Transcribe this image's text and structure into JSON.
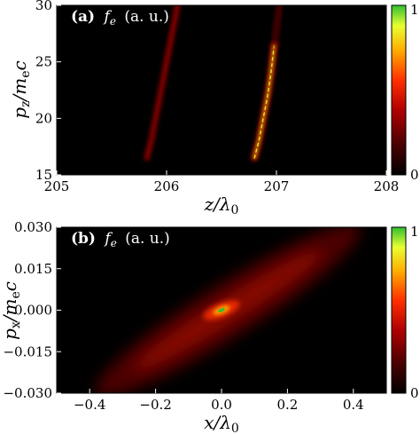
{
  "chart_data": [
    {
      "type": "heatmap",
      "panel_label": "(a)",
      "quantity_symbol": "f",
      "quantity_sub": "e",
      "quantity_units": "(a. u.)",
      "xlabel": {
        "main": "z/λ",
        "sub": "0"
      },
      "ylabel": {
        "main": "p",
        "sub": "z",
        "div": "/m",
        "sub2": "e",
        "tail": "c"
      },
      "xlim": [
        205,
        208
      ],
      "ylim": [
        15,
        30
      ],
      "xticks": [
        "205",
        "206",
        "207",
        "208"
      ],
      "yticks": [
        "15",
        "20",
        "25",
        "30"
      ],
      "colorbar": {
        "min_label": "0",
        "max_label": "1",
        "colormap": [
          "#000000",
          "#4a0000",
          "#b00000",
          "#ff3000",
          "#ffb000",
          "#e8ff30",
          "#30c030"
        ]
      },
      "features": [
        {
          "name": "weak streak",
          "points": [
            [
              205.82,
              16.5
            ],
            [
              205.86,
              18
            ],
            [
              205.9,
              20
            ],
            [
              205.95,
              22.5
            ],
            [
              206.0,
              25
            ],
            [
              206.05,
              27.5
            ],
            [
              206.1,
              30
            ]
          ],
          "intensity": 0.3
        },
        {
          "name": "bright streak",
          "points": [
            [
              206.8,
              16.5
            ],
            [
              206.84,
              18
            ],
            [
              206.88,
              20
            ],
            [
              206.92,
              22
            ],
            [
              206.95,
              24
            ],
            [
              206.98,
              26.5
            ]
          ],
          "intensity": 0.85
        },
        {
          "name": "streak tail",
          "points": [
            [
              206.98,
              26.5
            ],
            [
              207.0,
              28
            ],
            [
              207.03,
              30
            ]
          ],
          "intensity": 0.25
        }
      ]
    },
    {
      "type": "heatmap",
      "panel_label": "(b)",
      "quantity_symbol": "f",
      "quantity_sub": "e",
      "quantity_units": "(a. u.)",
      "xlabel": {
        "main": "x/λ",
        "sub": "0"
      },
      "ylabel": {
        "main": "p",
        "sub": "x",
        "div": "/m",
        "sub2": "e",
        "tail": "c"
      },
      "xlim": [
        -0.5,
        0.5
      ],
      "ylim": [
        -0.03,
        0.03
      ],
      "xticks": [
        "−0.4",
        "−0.2",
        "0.0",
        "0.2",
        "0.4"
      ],
      "yticks": [
        "−0.030",
        "−0.015",
        "0.000",
        "0.015",
        "0.030"
      ],
      "colorbar": {
        "min_label": "0",
        "max_label": "1",
        "colormap": [
          "#000000",
          "#4a0000",
          "#b00000",
          "#ff3000",
          "#ffb000",
          "#e8ff30",
          "#30c030"
        ]
      },
      "features": [
        {
          "name": "diagonal band",
          "from": [
            -0.38,
            -0.03
          ],
          "to": [
            0.42,
            0.03
          ],
          "intensity": 0.35
        },
        {
          "name": "central peak",
          "center": [
            0.0,
            0.0
          ],
          "intensity": 1.0
        }
      ]
    }
  ]
}
